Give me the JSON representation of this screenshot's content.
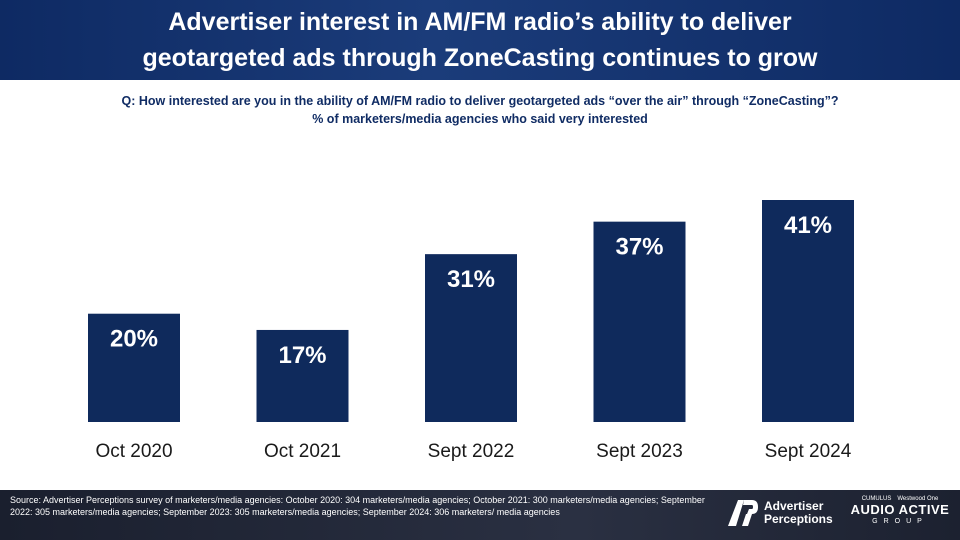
{
  "title_lines": [
    "Advertiser interest in AM/FM radio’s ability to deliver",
    "geotargeted ads through ZoneCasting continues to grow"
  ],
  "question_lines": [
    "Q: How interested  are you in the ability of AM/FM radio to deliver geotargeted ads “over the air” through “ZoneCasting”?",
    "% of marketers/media agencies who said very interested"
  ],
  "chart_data": {
    "type": "bar",
    "categories": [
      "Oct 2020",
      "Oct 2021",
      "Sept 2022",
      "Sept 2023",
      "Sept 2024"
    ],
    "values": [
      20,
      17,
      31,
      37,
      41
    ],
    "value_labels": [
      "20%",
      "17%",
      "31%",
      "37%",
      "41%"
    ],
    "ylim": [
      0,
      41
    ],
    "grid": false,
    "bar_color": "#0f2a5c"
  },
  "source_text": "Source: Advertiser Perceptions survey of marketers/media agencies: October 2020: 304 marketers/media agencies; October 2021: 300 marketers/media agencies; September 2022: 305 marketers/media agencies; September 2023: 305 marketers/media agencies; September 2024: 306 marketers/ media agencies",
  "logos": {
    "ap_line1": "Advertiser",
    "ap_line2": "Perceptions",
    "aa_top_left": "CUMULUS",
    "aa_top_right": "Westwood One",
    "aa_main": "AUDIO ACTIVE",
    "aa_sub": "GROUP"
  },
  "colors": {
    "header_bg": "#0e2a63",
    "question_text": "#102c64",
    "bar": "#0f2a5c",
    "footer_bg": "#1c2130"
  }
}
